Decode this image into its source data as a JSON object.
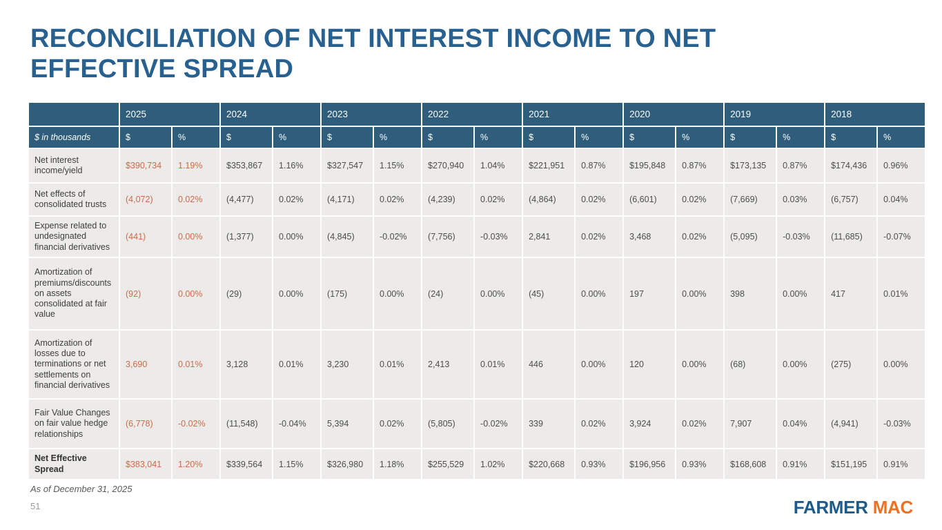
{
  "slide": {
    "title": "RECONCILIATION OF NET INTEREST INCOME TO NET EFFECTIVE SPREAD",
    "footnote": "As of December 31, 2025",
    "page_number": "51",
    "logo": {
      "part1": "FARMER",
      "part2": "MAC"
    }
  },
  "colors": {
    "title_blue": "#28618F",
    "header_blue": "#2E5E7C",
    "row_gray": "#ECEBE9",
    "highlight_orange": "#D06A47",
    "logo_blue": "#1D5B8B",
    "logo_orange": "#F07022"
  },
  "table": {
    "unit_label": "$ in thousands",
    "years": [
      "2025",
      "2024",
      "2023",
      "2022",
      "2021",
      "2020",
      "2019",
      "2018"
    ],
    "subcolumns": [
      "$",
      "%"
    ],
    "highlight_year": "2025",
    "rows": [
      {
        "label": "Net interest income/yield",
        "bold": false,
        "values": [
          "$390,734",
          "1.19%",
          "$353,867",
          "1.16%",
          "$327,547",
          "1.15%",
          "$270,940",
          "1.04%",
          "$221,951",
          "0.87%",
          "$195,848",
          "0.87%",
          "$173,135",
          "0.87%",
          "$174,436",
          "0.96%"
        ]
      },
      {
        "label": "Net effects of consolidated trusts",
        "bold": false,
        "values": [
          "(4,072)",
          "0.02%",
          "(4,477)",
          "0.02%",
          "(4,171)",
          "0.02%",
          "(4,239)",
          "0.02%",
          "(4,864)",
          "0.02%",
          "(6,601)",
          "0.02%",
          "(7,669)",
          "0.03%",
          "(6,757)",
          "0.04%"
        ]
      },
      {
        "label": "Expense related to undesignated financial derivatives",
        "bold": false,
        "values": [
          "(441)",
          "0.00%",
          "(1,377)",
          "0.00%",
          "(4,845)",
          "-0.02%",
          "(7,756)",
          "-0.03%",
          "2,841",
          "0.02%",
          "3,468",
          "0.02%",
          "(5,095)",
          "-0.03%",
          "(11,685)",
          "-0.07%"
        ]
      },
      {
        "label": "Amortization of premiums/discounts on assets consolidated at fair value",
        "bold": false,
        "values": [
          "(92)",
          "0.00%",
          "(29)",
          "0.00%",
          "(175)",
          "0.00%",
          "(24)",
          "0.00%",
          "(45)",
          "0.00%",
          "197",
          "0.00%",
          "398",
          "0.00%",
          "417",
          "0.01%"
        ]
      },
      {
        "label": "Amortization of losses due to terminations or net settlements on financial derivatives",
        "bold": false,
        "values": [
          "3,690",
          "0.01%",
          "3,128",
          "0.01%",
          "3,230",
          "0.01%",
          "2,413",
          "0.01%",
          "446",
          "0.00%",
          "120",
          "0.00%",
          "(68)",
          "0.00%",
          "(275)",
          "0.00%"
        ]
      },
      {
        "label": "Fair Value Changes on fair value hedge relationships",
        "bold": false,
        "values": [
          "(6,778)",
          "-0.02%",
          "(11,548)",
          "-0.04%",
          "5,394",
          "0.02%",
          "(5,805)",
          "-0.02%",
          "339",
          "0.02%",
          "3,924",
          "0.02%",
          "7,907",
          "0.04%",
          "(4,941)",
          "-0.03%"
        ]
      },
      {
        "label": "Net Effective Spread",
        "bold": true,
        "values": [
          "$383,041",
          "1.20%",
          "$339,564",
          "1.15%",
          "$326,980",
          "1.18%",
          "$255,529",
          "1.02%",
          "$220,668",
          "0.93%",
          "$196,956",
          "0.93%",
          "$168,608",
          "0.91%",
          "$151,195",
          "0.91%"
        ]
      }
    ]
  }
}
